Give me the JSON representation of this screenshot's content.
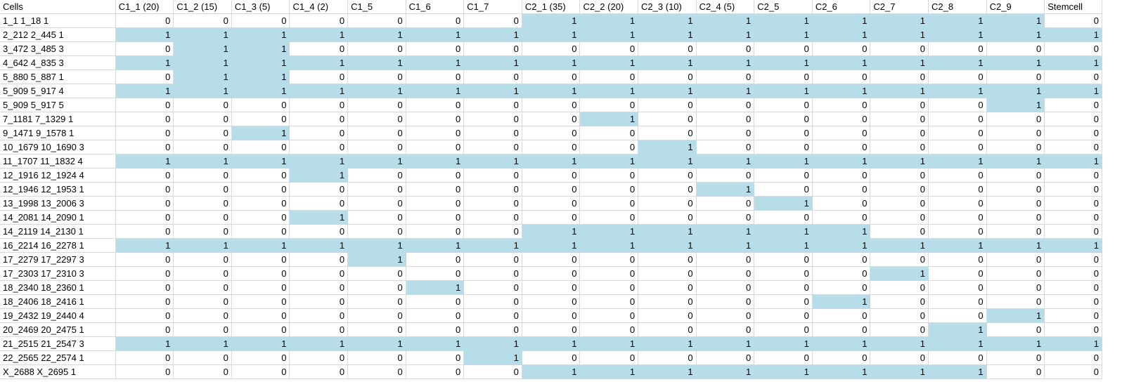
{
  "sheet": {
    "highlight_color": "#b7dde8",
    "columns": [
      "Cells",
      "C1_1 (20)",
      "C1_2 (15)",
      "C1_3 (5)",
      "C1_4 (2)",
      "C1_5",
      "C1_6",
      "C1_7",
      "C2_1 (35)",
      "C2_2 (20)",
      "C2_3 (10)",
      "C2_4 (5)",
      "C2_5",
      "C2_6",
      "C2_7",
      "C2_8",
      "C2_9",
      "Stemcell"
    ],
    "rows": [
      {
        "name": "1_1 1_18 1",
        "values": [
          "0",
          "0",
          "0",
          "0",
          "0",
          "0",
          "0",
          "1",
          "1",
          "1",
          "1",
          "1",
          "1",
          "1",
          "1",
          "1",
          "0"
        ],
        "hl": [
          0,
          0,
          0,
          0,
          0,
          0,
          0,
          1,
          1,
          1,
          1,
          1,
          1,
          1,
          1,
          1,
          0
        ]
      },
      {
        "name": "2_212 2_445 1",
        "values": [
          "1",
          "1",
          "1",
          "1",
          "1",
          "1",
          "1",
          "1",
          "1",
          "1",
          "1",
          "1",
          "1",
          "1",
          "1",
          "1",
          "1"
        ],
        "hl": [
          1,
          1,
          1,
          1,
          1,
          1,
          1,
          1,
          1,
          1,
          1,
          1,
          1,
          1,
          1,
          1,
          1
        ]
      },
      {
        "name": "3_472 3_485 3",
        "values": [
          "0",
          "1",
          "1",
          "0",
          "0",
          "0",
          "0",
          "0",
          "0",
          "0",
          "0",
          "0",
          "0",
          "0",
          "0",
          "0",
          "0"
        ],
        "hl": [
          0,
          1,
          1,
          0,
          0,
          0,
          0,
          0,
          0,
          0,
          0,
          0,
          0,
          0,
          0,
          0,
          0
        ]
      },
      {
        "name": "4_642 4_835 3",
        "values": [
          "1",
          "1",
          "1",
          "1",
          "1",
          "1",
          "1",
          "1",
          "1",
          "1",
          "1",
          "1",
          "1",
          "1",
          "1",
          "1",
          "1"
        ],
        "hl": [
          1,
          1,
          1,
          1,
          1,
          1,
          1,
          1,
          1,
          1,
          1,
          1,
          1,
          1,
          1,
          1,
          1
        ]
      },
      {
        "name": "5_880 5_887 1",
        "values": [
          "0",
          "1",
          "1",
          "0",
          "0",
          "0",
          "0",
          "0",
          "0",
          "0",
          "0",
          "0",
          "0",
          "0",
          "0",
          "0",
          "0"
        ],
        "hl": [
          0,
          1,
          1,
          0,
          0,
          0,
          0,
          0,
          0,
          0,
          0,
          0,
          0,
          0,
          0,
          0,
          0
        ]
      },
      {
        "name": "5_909 5_917 4",
        "values": [
          "1",
          "1",
          "1",
          "1",
          "1",
          "1",
          "1",
          "1",
          "1",
          "1",
          "1",
          "1",
          "1",
          "1",
          "1",
          "1",
          "1"
        ],
        "hl": [
          1,
          1,
          1,
          1,
          1,
          1,
          1,
          1,
          1,
          1,
          1,
          1,
          1,
          1,
          1,
          1,
          1
        ]
      },
      {
        "name": "5_909 5_917 5",
        "values": [
          "0",
          "0",
          "0",
          "0",
          "0",
          "0",
          "0",
          "0",
          "0",
          "0",
          "0",
          "0",
          "0",
          "0",
          "0",
          "1",
          "0"
        ],
        "hl": [
          0,
          0,
          0,
          0,
          0,
          0,
          0,
          0,
          0,
          0,
          0,
          0,
          0,
          0,
          0,
          1,
          0
        ]
      },
      {
        "name": "7_1181 7_1329 1",
        "values": [
          "0",
          "0",
          "0",
          "0",
          "0",
          "0",
          "0",
          "0",
          "1",
          "0",
          "0",
          "0",
          "0",
          "0",
          "0",
          "0",
          "0"
        ],
        "hl": [
          0,
          0,
          0,
          0,
          0,
          0,
          0,
          0,
          1,
          0,
          0,
          0,
          0,
          0,
          0,
          0,
          0
        ]
      },
      {
        "name": "9_1471 9_1578 1",
        "values": [
          "0",
          "0",
          "1",
          "0",
          "0",
          "0",
          "0",
          "0",
          "0",
          "0",
          "0",
          "0",
          "0",
          "0",
          "0",
          "0",
          "0"
        ],
        "hl": [
          0,
          0,
          1,
          0,
          0,
          0,
          0,
          0,
          0,
          0,
          0,
          0,
          0,
          0,
          0,
          0,
          0
        ]
      },
      {
        "name": "10_1679 10_1690 3",
        "values": [
          "0",
          "0",
          "0",
          "0",
          "0",
          "0",
          "0",
          "0",
          "0",
          "1",
          "0",
          "0",
          "0",
          "0",
          "0",
          "0",
          "0"
        ],
        "hl": [
          0,
          0,
          0,
          0,
          0,
          0,
          0,
          0,
          0,
          1,
          0,
          0,
          0,
          0,
          0,
          0,
          0
        ]
      },
      {
        "name": "11_1707 11_1832 4",
        "values": [
          "1",
          "1",
          "1",
          "1",
          "1",
          "1",
          "1",
          "1",
          "1",
          "1",
          "1",
          "1",
          "1",
          "1",
          "1",
          "1",
          "1"
        ],
        "hl": [
          1,
          1,
          1,
          1,
          1,
          1,
          1,
          1,
          1,
          1,
          1,
          1,
          1,
          1,
          1,
          1,
          1
        ]
      },
      {
        "name": "12_1916 12_1924 4",
        "values": [
          "0",
          "0",
          "0",
          "1",
          "0",
          "0",
          "0",
          "0",
          "0",
          "0",
          "0",
          "0",
          "0",
          "0",
          "0",
          "0",
          "0"
        ],
        "hl": [
          0,
          0,
          0,
          1,
          0,
          0,
          0,
          0,
          0,
          0,
          0,
          0,
          0,
          0,
          0,
          0,
          0
        ]
      },
      {
        "name": "12_1946 12_1953 1",
        "values": [
          "0",
          "0",
          "0",
          "0",
          "0",
          "0",
          "0",
          "0",
          "0",
          "0",
          "1",
          "0",
          "0",
          "0",
          "0",
          "0",
          "0"
        ],
        "hl": [
          0,
          0,
          0,
          0,
          0,
          0,
          0,
          0,
          0,
          0,
          1,
          0,
          0,
          0,
          0,
          0,
          0
        ]
      },
      {
        "name": "13_1998 13_2006 3",
        "values": [
          "0",
          "0",
          "0",
          "0",
          "0",
          "0",
          "0",
          "0",
          "0",
          "0",
          "0",
          "1",
          "0",
          "0",
          "0",
          "0",
          "0"
        ],
        "hl": [
          0,
          0,
          0,
          0,
          0,
          0,
          0,
          0,
          0,
          0,
          0,
          1,
          0,
          0,
          0,
          0,
          0
        ]
      },
      {
        "name": "14_2081 14_2090 1",
        "values": [
          "0",
          "0",
          "0",
          "1",
          "0",
          "0",
          "0",
          "0",
          "0",
          "0",
          "0",
          "0",
          "0",
          "0",
          "0",
          "0",
          "0"
        ],
        "hl": [
          0,
          0,
          0,
          1,
          0,
          0,
          0,
          0,
          0,
          0,
          0,
          0,
          0,
          0,
          0,
          0,
          0
        ]
      },
      {
        "name": "14_2119 14_2130 1",
        "values": [
          "0",
          "0",
          "0",
          "0",
          "0",
          "0",
          "0",
          "1",
          "1",
          "1",
          "1",
          "1",
          "1",
          "0",
          "0",
          "0",
          "0"
        ],
        "hl": [
          0,
          0,
          0,
          0,
          0,
          0,
          0,
          1,
          1,
          1,
          1,
          1,
          1,
          0,
          0,
          0,
          0
        ]
      },
      {
        "name": "16_2214 16_2278 1",
        "values": [
          "1",
          "1",
          "1",
          "1",
          "1",
          "1",
          "1",
          "1",
          "1",
          "1",
          "1",
          "1",
          "1",
          "1",
          "1",
          "1",
          "1"
        ],
        "hl": [
          1,
          1,
          1,
          1,
          1,
          1,
          1,
          1,
          1,
          1,
          1,
          1,
          1,
          1,
          1,
          1,
          1
        ]
      },
      {
        "name": "17_2279 17_2297 3",
        "values": [
          "0",
          "0",
          "0",
          "0",
          "1",
          "0",
          "0",
          "0",
          "0",
          "0",
          "0",
          "0",
          "0",
          "0",
          "0",
          "0",
          "0"
        ],
        "hl": [
          0,
          0,
          0,
          0,
          1,
          0,
          0,
          0,
          0,
          0,
          0,
          0,
          0,
          0,
          0,
          0,
          0
        ]
      },
      {
        "name": "17_2303 17_2310 3",
        "values": [
          "0",
          "0",
          "0",
          "0",
          "0",
          "0",
          "0",
          "0",
          "0",
          "0",
          "0",
          "0",
          "0",
          "1",
          "0",
          "0",
          "0"
        ],
        "hl": [
          0,
          0,
          0,
          0,
          0,
          0,
          0,
          0,
          0,
          0,
          0,
          0,
          0,
          1,
          0,
          0,
          0
        ]
      },
      {
        "name": "18_2340 18_2360 1",
        "values": [
          "0",
          "0",
          "0",
          "0",
          "0",
          "1",
          "0",
          "0",
          "0",
          "0",
          "0",
          "0",
          "0",
          "0",
          "0",
          "0",
          "0"
        ],
        "hl": [
          0,
          0,
          0,
          0,
          0,
          1,
          0,
          0,
          0,
          0,
          0,
          0,
          0,
          0,
          0,
          0,
          0
        ]
      },
      {
        "name": "18_2406 18_2416 1",
        "values": [
          "0",
          "0",
          "0",
          "0",
          "0",
          "0",
          "0",
          "0",
          "0",
          "0",
          "0",
          "0",
          "1",
          "0",
          "0",
          "0",
          "0"
        ],
        "hl": [
          0,
          0,
          0,
          0,
          0,
          0,
          0,
          0,
          0,
          0,
          0,
          0,
          1,
          0,
          0,
          0,
          0
        ]
      },
      {
        "name": "19_2432 19_2440 4",
        "values": [
          "0",
          "0",
          "0",
          "0",
          "0",
          "0",
          "0",
          "0",
          "0",
          "0",
          "0",
          "0",
          "0",
          "0",
          "0",
          "1",
          "0"
        ],
        "hl": [
          0,
          0,
          0,
          0,
          0,
          0,
          0,
          0,
          0,
          0,
          0,
          0,
          0,
          0,
          0,
          1,
          0
        ]
      },
      {
        "name": "20_2469 20_2475 1",
        "values": [
          "0",
          "0",
          "0",
          "0",
          "0",
          "0",
          "0",
          "0",
          "0",
          "0",
          "0",
          "0",
          "0",
          "0",
          "1",
          "0",
          "0"
        ],
        "hl": [
          0,
          0,
          0,
          0,
          0,
          0,
          0,
          0,
          0,
          0,
          0,
          0,
          0,
          0,
          1,
          0,
          0
        ]
      },
      {
        "name": "21_2515 21_2547 3",
        "values": [
          "1",
          "1",
          "1",
          "1",
          "1",
          "1",
          "1",
          "1",
          "1",
          "1",
          "1",
          "1",
          "1",
          "1",
          "1",
          "1",
          "1"
        ],
        "hl": [
          1,
          1,
          1,
          1,
          1,
          1,
          1,
          1,
          1,
          1,
          1,
          1,
          1,
          1,
          1,
          1,
          1
        ]
      },
      {
        "name": "22_2565 22_2574 1",
        "values": [
          "0",
          "0",
          "0",
          "0",
          "0",
          "0",
          "1",
          "0",
          "0",
          "0",
          "0",
          "0",
          "0",
          "0",
          "0",
          "0",
          "0"
        ],
        "hl": [
          0,
          0,
          0,
          0,
          0,
          0,
          1,
          0,
          0,
          0,
          0,
          0,
          0,
          0,
          0,
          0,
          0
        ]
      },
      {
        "name": "X_2688 X_2695 1",
        "values": [
          "0",
          "0",
          "0",
          "0",
          "0",
          "0",
          "0",
          "1",
          "1",
          "1",
          "1",
          "1",
          "1",
          "1",
          "1",
          "0",
          "0"
        ],
        "hl": [
          0,
          0,
          0,
          0,
          0,
          0,
          0,
          1,
          1,
          1,
          1,
          1,
          1,
          1,
          1,
          0,
          0
        ]
      }
    ]
  }
}
